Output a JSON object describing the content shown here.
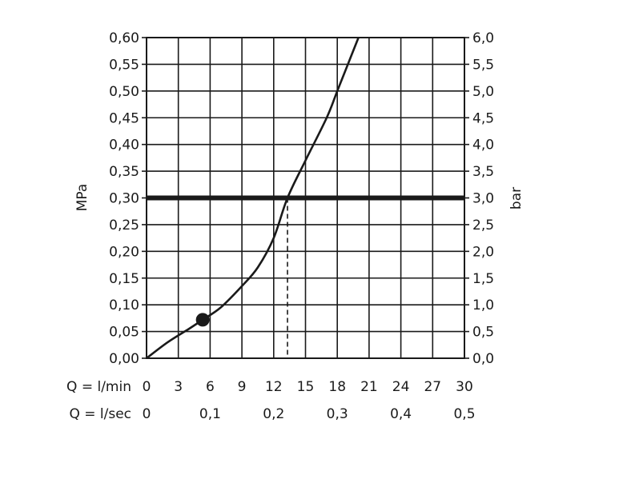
{
  "chart_data": {
    "type": "line",
    "y_left": {
      "label": "MPa",
      "range": [
        0,
        0.6
      ],
      "ticks": [
        "0,00",
        "0,05",
        "0,10",
        "0,15",
        "0,20",
        "0,25",
        "0,30",
        "0,35",
        "0,40",
        "0,45",
        "0,50",
        "0,55",
        "0,60"
      ]
    },
    "y_right": {
      "label": "bar",
      "range": [
        0,
        6.0
      ],
      "ticks": [
        "0,0",
        "0,5",
        "1,0",
        "1,5",
        "2,0",
        "2,5",
        "3,0",
        "3,5",
        "4,0",
        "4,5",
        "5,0",
        "5,5",
        "6,0"
      ]
    },
    "x": {
      "range": [
        0,
        30
      ],
      "row1_label": "Q = l/min",
      "row1_ticks": [
        {
          "value": 0,
          "label": "0"
        },
        {
          "value": 3,
          "label": "3"
        },
        {
          "value": 6,
          "label": "6"
        },
        {
          "value": 9,
          "label": "9"
        },
        {
          "value": 12,
          "label": "12"
        },
        {
          "value": 15,
          "label": "15"
        },
        {
          "value": 18,
          "label": "18"
        },
        {
          "value": 21,
          "label": "21"
        },
        {
          "value": 24,
          "label": "24"
        },
        {
          "value": 27,
          "label": "27"
        },
        {
          "value": 30,
          "label": "30"
        }
      ],
      "row2_label": "Q = l/sec",
      "row2_ticks": [
        {
          "value": 0,
          "label": "0"
        },
        {
          "value": 6,
          "label": "0,1"
        },
        {
          "value": 12,
          "label": "0,2"
        },
        {
          "value": 18,
          "label": "0,3"
        },
        {
          "value": 24,
          "label": "0,4"
        },
        {
          "value": 30,
          "label": "0,5"
        }
      ]
    },
    "grid": true,
    "series": [
      {
        "x": [
          0,
          2,
          4,
          5.3,
          7,
          9,
          10.5,
          12,
          13.3,
          15,
          17,
          18,
          19,
          20
        ],
        "y": [
          0,
          0.03,
          0.055,
          0.072,
          0.095,
          0.135,
          0.17,
          0.225,
          0.3,
          0.37,
          0.45,
          0.5,
          0.55,
          0.6
        ]
      }
    ],
    "reference_line": {
      "y": 0.3
    },
    "marker": {
      "x": 5.3,
      "y": 0.072
    },
    "dashed_drop": {
      "x": 13.3,
      "y": 0.3
    }
  }
}
